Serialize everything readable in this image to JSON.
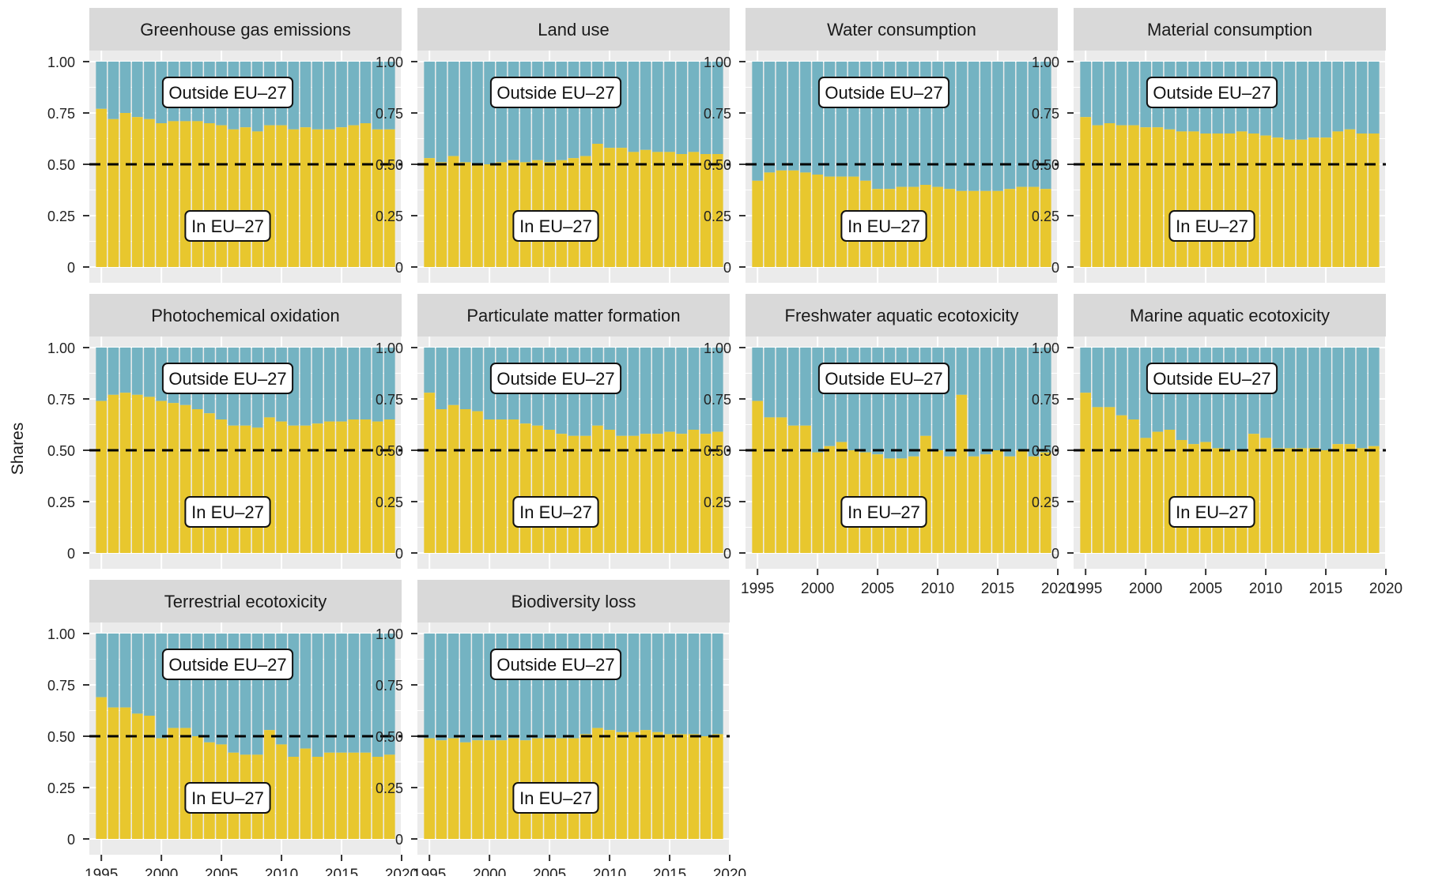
{
  "figure": {
    "y_axis_title": "Shares",
    "y_ticks": [
      "0",
      "0.25",
      "0.50",
      "0.75",
      "1.00"
    ],
    "x_ticks": [
      "1995",
      "2000",
      "2005",
      "2010",
      "2015",
      "2020"
    ],
    "label_outside": "Outside EU–27",
    "label_inside": "In EU–27",
    "colors": {
      "inside": "#E8C72E",
      "outside": "#74B3C2",
      "panel_background": "#EBEBEB",
      "strip_background": "#D9D9D9",
      "reference_line": "#000000"
    }
  },
  "chart_data": {
    "type": "bar",
    "stacked": true,
    "years": [
      1995,
      1996,
      1997,
      1998,
      1999,
      2000,
      2001,
      2002,
      2003,
      2004,
      2005,
      2006,
      2007,
      2008,
      2009,
      2010,
      2011,
      2012,
      2013,
      2014,
      2015,
      2016,
      2017,
      2018,
      2019
    ],
    "ylim": [
      0,
      1
    ],
    "xlim": [
      1994,
      2020
    ],
    "reference_line": 0.5,
    "reference_line_style": "dashed",
    "series": [
      {
        "name": "In EU–27",
        "color": "#E8C72E"
      },
      {
        "name": "Outside EU–27",
        "color": "#74B3C2"
      }
    ],
    "panels": [
      {
        "title": "Greenhouse gas emissions",
        "in_eu_share": [
          0.77,
          0.72,
          0.75,
          0.73,
          0.72,
          0.7,
          0.71,
          0.71,
          0.71,
          0.7,
          0.69,
          0.67,
          0.68,
          0.66,
          0.69,
          0.69,
          0.67,
          0.68,
          0.67,
          0.67,
          0.68,
          0.69,
          0.7,
          0.67,
          0.67
        ]
      },
      {
        "title": "Land use",
        "in_eu_share": [
          0.53,
          0.51,
          0.54,
          0.51,
          0.5,
          0.5,
          0.51,
          0.52,
          0.51,
          0.52,
          0.51,
          0.52,
          0.53,
          0.54,
          0.6,
          0.58,
          0.58,
          0.56,
          0.57,
          0.56,
          0.56,
          0.55,
          0.56,
          0.55,
          0.55
        ]
      },
      {
        "title": "Water consumption",
        "in_eu_share": [
          0.42,
          0.46,
          0.47,
          0.47,
          0.46,
          0.45,
          0.44,
          0.44,
          0.44,
          0.42,
          0.38,
          0.38,
          0.39,
          0.39,
          0.4,
          0.39,
          0.38,
          0.37,
          0.37,
          0.37,
          0.37,
          0.38,
          0.39,
          0.39,
          0.38
        ]
      },
      {
        "title": "Material consumption",
        "in_eu_share": [
          0.73,
          0.69,
          0.7,
          0.69,
          0.69,
          0.68,
          0.68,
          0.67,
          0.66,
          0.66,
          0.65,
          0.65,
          0.65,
          0.66,
          0.65,
          0.64,
          0.63,
          0.62,
          0.62,
          0.63,
          0.63,
          0.66,
          0.67,
          0.65,
          0.65
        ]
      },
      {
        "title": "Photochemical oxidation",
        "in_eu_share": [
          0.74,
          0.77,
          0.78,
          0.77,
          0.76,
          0.74,
          0.73,
          0.72,
          0.7,
          0.68,
          0.65,
          0.62,
          0.62,
          0.61,
          0.66,
          0.64,
          0.62,
          0.62,
          0.63,
          0.64,
          0.64,
          0.65,
          0.65,
          0.64,
          0.65
        ]
      },
      {
        "title": "Particulate matter formation",
        "in_eu_share": [
          0.78,
          0.7,
          0.72,
          0.7,
          0.69,
          0.65,
          0.65,
          0.65,
          0.63,
          0.62,
          0.6,
          0.58,
          0.57,
          0.57,
          0.62,
          0.6,
          0.57,
          0.57,
          0.58,
          0.58,
          0.59,
          0.58,
          0.6,
          0.58,
          0.59
        ]
      },
      {
        "title": "Freshwater aquatic ecotoxicity",
        "in_eu_share": [
          0.74,
          0.66,
          0.66,
          0.62,
          0.62,
          0.49,
          0.52,
          0.54,
          0.5,
          0.49,
          0.48,
          0.46,
          0.46,
          0.47,
          0.57,
          0.5,
          0.47,
          0.77,
          0.47,
          0.48,
          0.5,
          0.47,
          0.5,
          0.47,
          0.49
        ]
      },
      {
        "title": "Marine aquatic ecotoxicity",
        "in_eu_share": [
          0.78,
          0.71,
          0.71,
          0.67,
          0.65,
          0.56,
          0.59,
          0.6,
          0.55,
          0.53,
          0.54,
          0.51,
          0.5,
          0.5,
          0.58,
          0.56,
          0.51,
          0.51,
          0.51,
          0.51,
          0.5,
          0.53,
          0.53,
          0.51,
          0.52
        ]
      },
      {
        "title": "Terrestrial ecotoxicity",
        "in_eu_share": [
          0.69,
          0.64,
          0.64,
          0.61,
          0.6,
          0.49,
          0.54,
          0.54,
          0.5,
          0.47,
          0.46,
          0.42,
          0.41,
          0.41,
          0.53,
          0.46,
          0.4,
          0.44,
          0.4,
          0.42,
          0.42,
          0.42,
          0.42,
          0.4,
          0.41
        ]
      },
      {
        "title": "Biodiversity loss",
        "in_eu_share": [
          0.49,
          0.48,
          0.49,
          0.47,
          0.48,
          0.48,
          0.48,
          0.49,
          0.48,
          0.49,
          0.49,
          0.49,
          0.49,
          0.51,
          0.54,
          0.53,
          0.52,
          0.52,
          0.53,
          0.52,
          0.51,
          0.51,
          0.51,
          0.5,
          0.51
        ]
      }
    ]
  }
}
